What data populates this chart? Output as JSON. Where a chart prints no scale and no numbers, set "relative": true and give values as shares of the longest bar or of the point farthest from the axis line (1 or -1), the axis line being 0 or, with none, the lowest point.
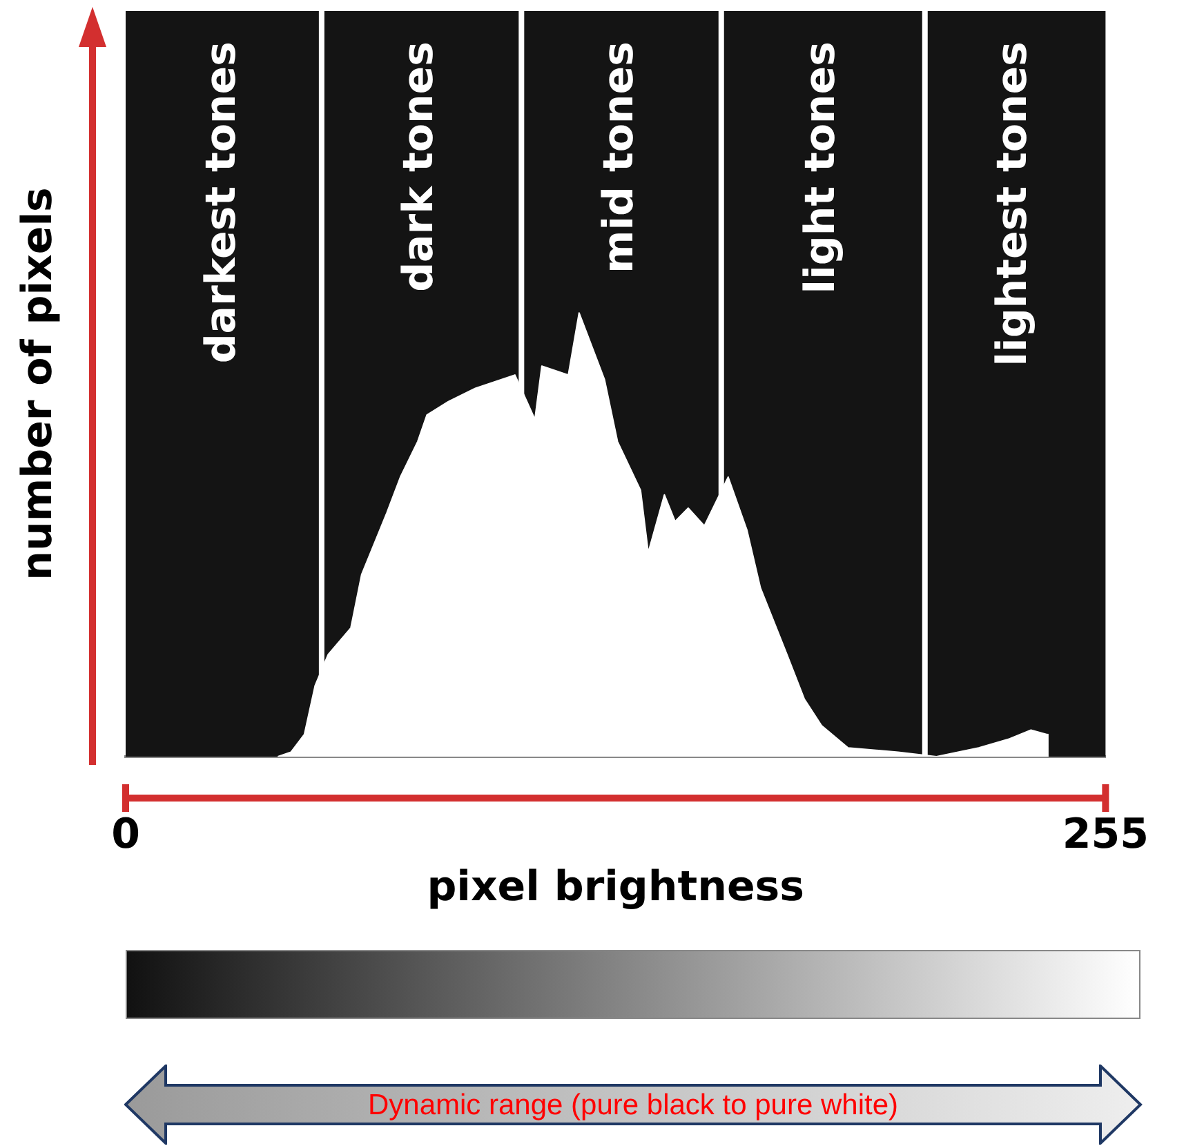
{
  "chart_data": {
    "type": "area",
    "relative": true,
    "xlabel": "pixel brightness",
    "ylabel": "number of pixels",
    "x": [
      39.6,
      43,
      46.5,
      49.3,
      52.7,
      58.6,
      61.4,
      68,
      71.5,
      76,
      78.4,
      84,
      91,
      101.3,
      106.5,
      108.3,
      115.2,
      118,
      124.6,
      128,
      134,
      136,
      140.2,
      143,
      146.4,
      150.6,
      153.4,
      156.8,
      161.7,
      165.2,
      172.1,
      176.6,
      181.1,
      188,
      201,
      211,
      222,
      230,
      235.6,
      239.8,
      240
    ],
    "values": [
      0,
      0.01,
      0.05,
      0.16,
      0.23,
      0.29,
      0.41,
      0.55,
      0.63,
      0.71,
      0.77,
      0.8,
      0.83,
      0.86,
      0.76,
      0.88,
      0.86,
      1,
      0.85,
      0.71,
      0.6,
      0.46,
      0.59,
      0.53,
      0.56,
      0.52,
      0.57,
      0.63,
      0.51,
      0.38,
      0.23,
      0.13,
      0.07,
      0.02,
      0.01,
      0,
      0.02,
      0.04,
      0.06,
      0.05,
      0
    ],
    "color": "#ffffff",
    "xlim": [
      0,
      255
    ],
    "xticks": [
      0,
      255
    ],
    "grid": false,
    "legend": false,
    "bands": [
      {
        "axis": "x",
        "from": 0,
        "to": 51,
        "label": "darkest tones",
        "color": "#141414"
      },
      {
        "axis": "x",
        "from": 51,
        "to": 103,
        "label": "dark tones",
        "color": "#141414"
      },
      {
        "axis": "x",
        "from": 103,
        "to": 155,
        "label": "mid tones",
        "color": "#141414"
      },
      {
        "axis": "x",
        "from": 155,
        "to": 208,
        "label": "light tones",
        "color": "#141414"
      },
      {
        "axis": "x",
        "from": 208,
        "to": 255,
        "label": "lightest tones",
        "color": "#141414"
      }
    ],
    "ref_lines": [
      {
        "axis": "x",
        "value": 51,
        "color": "#ffffff"
      },
      {
        "axis": "x",
        "value": 103,
        "color": "#ffffff"
      },
      {
        "axis": "x",
        "value": 155,
        "color": "#ffffff"
      },
      {
        "axis": "x",
        "value": 208,
        "color": "#ffffff"
      }
    ],
    "annotations": [
      "Dynamic range (pure black to pure white)"
    ]
  }
}
